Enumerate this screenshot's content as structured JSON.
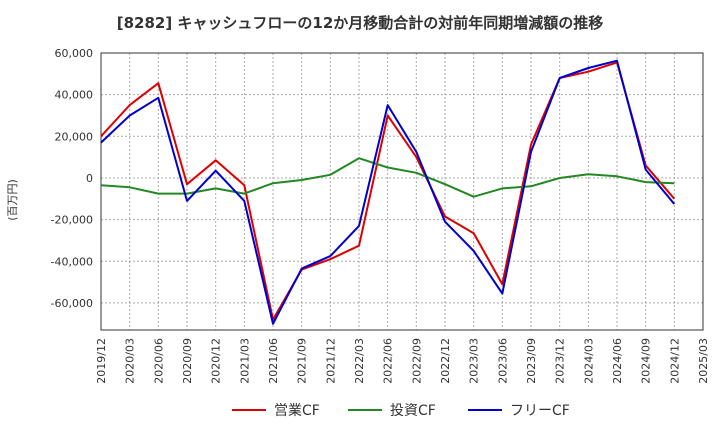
{
  "chart_data": {
    "type": "line",
    "title": "[8282]  キャッシュフローの12か月移動合計の対前年同期増減額の推移",
    "ylabel": "(百万円)",
    "xlabel": "",
    "ylim": [
      -73000,
      60000
    ],
    "yticks": [
      60000,
      40000,
      20000,
      0,
      -20000,
      -40000,
      -60000
    ],
    "ytick_labels": [
      "60,000",
      "40,000",
      "20,000",
      "0",
      "-20,000",
      "-40,000",
      "-60,000"
    ],
    "xtick_labels": [
      "2019/12",
      "2020/03",
      "2020/06",
      "2020/09",
      "2020/12",
      "2021/03",
      "2021/06",
      "2021/09",
      "2021/12",
      "2022/03",
      "2022/06",
      "2022/09",
      "2022/12",
      "2023/03",
      "2023/06",
      "2023/09",
      "2023/12",
      "2024/03",
      "2024/06",
      "2024/09",
      "2024/12",
      "2025/03"
    ],
    "x": [
      "2019/12",
      "2020/03",
      "2020/06",
      "2020/09",
      "2020/12",
      "2021/03",
      "2021/06",
      "2021/09",
      "2021/12",
      "2022/03",
      "2022/06",
      "2022/09",
      "2022/12",
      "2023/03",
      "2023/06",
      "2023/09",
      "2023/12",
      "2024/03",
      "2024/06",
      "2024/09",
      "2024/12"
    ],
    "grid": true,
    "legend_position": "bottom",
    "series": [
      {
        "name": "営業CF",
        "color": "#dd0000",
        "values": [
          20000,
          35000,
          45500,
          -3000,
          8500,
          -3500,
          -68000,
          -44000,
          -39000,
          -32500,
          30000,
          10000,
          -18500,
          -26500,
          -51000,
          16000,
          48000,
          51000,
          55500,
          6000,
          -10000
        ]
      },
      {
        "name": "投資CF",
        "color": "#228822",
        "values": [
          -3500,
          -4500,
          -7500,
          -7500,
          -5000,
          -7500,
          -2500,
          -1000,
          1500,
          9500,
          5000,
          2500,
          -3000,
          -9000,
          -5000,
          -4000,
          0,
          1800,
          800,
          -2000,
          -2500
        ]
      },
      {
        "name": "フリーCF",
        "color": "#0000cc",
        "values": [
          17000,
          30000,
          38500,
          -11000,
          3500,
          -11000,
          -70000,
          -43500,
          -37500,
          -23000,
          35000,
          12500,
          -21000,
          -35000,
          -55500,
          12500,
          48000,
          52800,
          56300,
          4000,
          -12500
        ]
      }
    ]
  }
}
